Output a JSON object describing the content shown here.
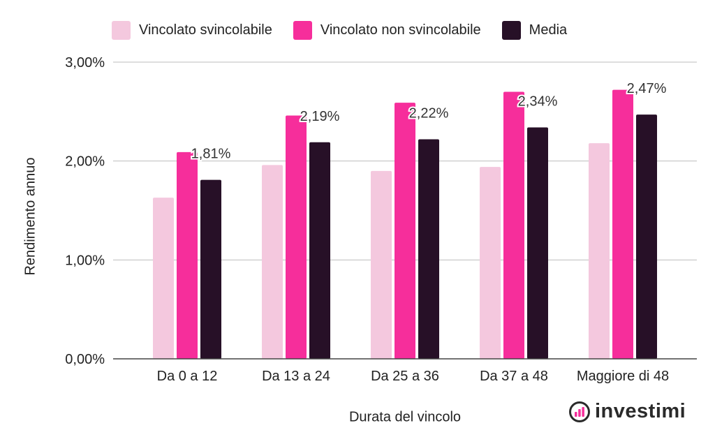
{
  "chart_data": {
    "type": "bar",
    "title": "",
    "xlabel": "Durata del vincolo",
    "ylabel": "Rendimento annuo",
    "categories": [
      "Da 0 a 12",
      "Da 13 a 24",
      "Da 25 a 36",
      "Da 37 a 48",
      "Maggiore di 48"
    ],
    "series": [
      {
        "name": "Vincolato svincolabile",
        "values": [
          1.63,
          1.96,
          1.9,
          1.94,
          2.18
        ],
        "color": "#f4c8de"
      },
      {
        "name": "Vincolato non svincolabile",
        "values": [
          2.09,
          2.46,
          2.59,
          2.7,
          2.72
        ],
        "color": "#f62e9b"
      },
      {
        "name": "Media",
        "values": [
          1.81,
          2.19,
          2.22,
          2.34,
          2.47
        ],
        "color": "#271027"
      }
    ],
    "data_labels": [
      "1,81%",
      "2,19%",
      "2,22%",
      "2,34%",
      "2,47%"
    ],
    "y_ticks": [
      0,
      1,
      2,
      3
    ],
    "y_tick_labels": [
      "0,00%",
      "1,00%",
      "2,00%",
      "3,00%"
    ],
    "ylim": [
      0,
      3
    ],
    "grid": true,
    "legend_position": "top"
  },
  "brand": {
    "name": "investimi",
    "icon": "bar-chart-circle-icon"
  }
}
